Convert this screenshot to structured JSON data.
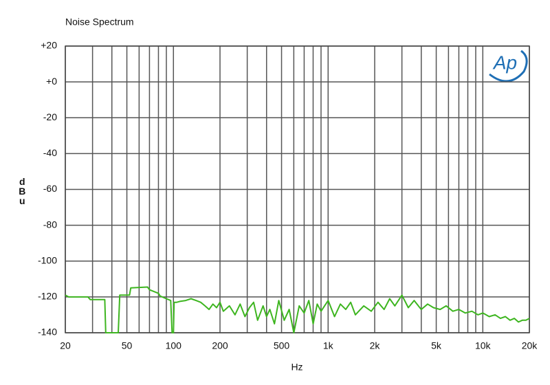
{
  "chart_data": {
    "type": "line",
    "title": "Noise Spectrum",
    "xlabel": "Hz",
    "ylabel": "dBu",
    "logo": "Ap",
    "xscale": "log",
    "grid": true,
    "color": "#3db51f",
    "xlim": [
      20,
      20000
    ],
    "ylim": [
      -140,
      20
    ],
    "xticks": [
      20,
      50,
      100,
      200,
      500,
      {
        "value": 1000,
        "label": "1k"
      },
      {
        "value": 2000,
        "label": "2k"
      },
      {
        "value": 5000,
        "label": "5k"
      },
      {
        "value": 10000,
        "label": "10k"
      },
      {
        "value": 20000,
        "label": "20k"
      }
    ],
    "xgrid": [
      30,
      40,
      60,
      70,
      80,
      90,
      300,
      400,
      600,
      700,
      800,
      900,
      3000,
      4000,
      6000,
      7000,
      8000,
      9000
    ],
    "yticks": [
      {
        "value": 20,
        "label": "+20"
      },
      {
        "value": 0,
        "label": "+0"
      },
      -20,
      -40,
      -60,
      -80,
      -100,
      -120,
      -140
    ],
    "x": [
      20,
      21,
      28,
      29,
      36,
      36.5,
      44,
      45,
      52,
      53,
      68,
      70,
      80,
      82,
      90,
      96,
      98,
      100,
      101,
      105,
      110,
      120,
      130,
      140,
      150,
      160,
      170,
      180,
      190,
      200,
      210,
      230,
      250,
      270,
      290,
      310,
      330,
      350,
      380,
      400,
      420,
      450,
      480,
      520,
      560,
      600,
      650,
      700,
      750,
      800,
      850,
      900,
      1000,
      1100,
      1200,
      1300,
      1400,
      1500,
      1700,
      1900,
      2100,
      2300,
      2500,
      2700,
      3000,
      3300,
      3600,
      4000,
      4400,
      4800,
      5300,
      5800,
      6400,
      7000,
      7700,
      8500,
      9300,
      10000,
      11000,
      12000,
      13000,
      14000,
      15000,
      16000,
      17000,
      18000,
      19000,
      20000
    ],
    "values": [
      -119,
      -120,
      -120,
      -121.5,
      -121.5,
      -140,
      -140,
      -119,
      -119,
      -115,
      -114.5,
      -116,
      -118,
      -119.5,
      -121,
      -122,
      -140,
      -140,
      -123,
      -123,
      -122.5,
      -122,
      -121,
      -122,
      -123,
      -125,
      -127,
      -124,
      -126,
      -123,
      -128,
      -125,
      -130,
      -124,
      -131,
      -126,
      -123,
      -133,
      -125,
      -131,
      -127,
      -135,
      -122,
      -133,
      -127,
      -140,
      -125,
      -129,
      -122,
      -135,
      -124,
      -128,
      -122,
      -131,
      -124,
      -127,
      -123,
      -130,
      -125,
      -128,
      -123,
      -127,
      -121,
      -125,
      -119,
      -126,
      -122,
      -127,
      -124,
      -126,
      -127,
      -125,
      -128,
      -127,
      -129,
      -128,
      -130,
      -129,
      -131,
      -130,
      -132,
      -131,
      -133,
      -132,
      -134,
      -133,
      -133,
      -132
    ]
  }
}
